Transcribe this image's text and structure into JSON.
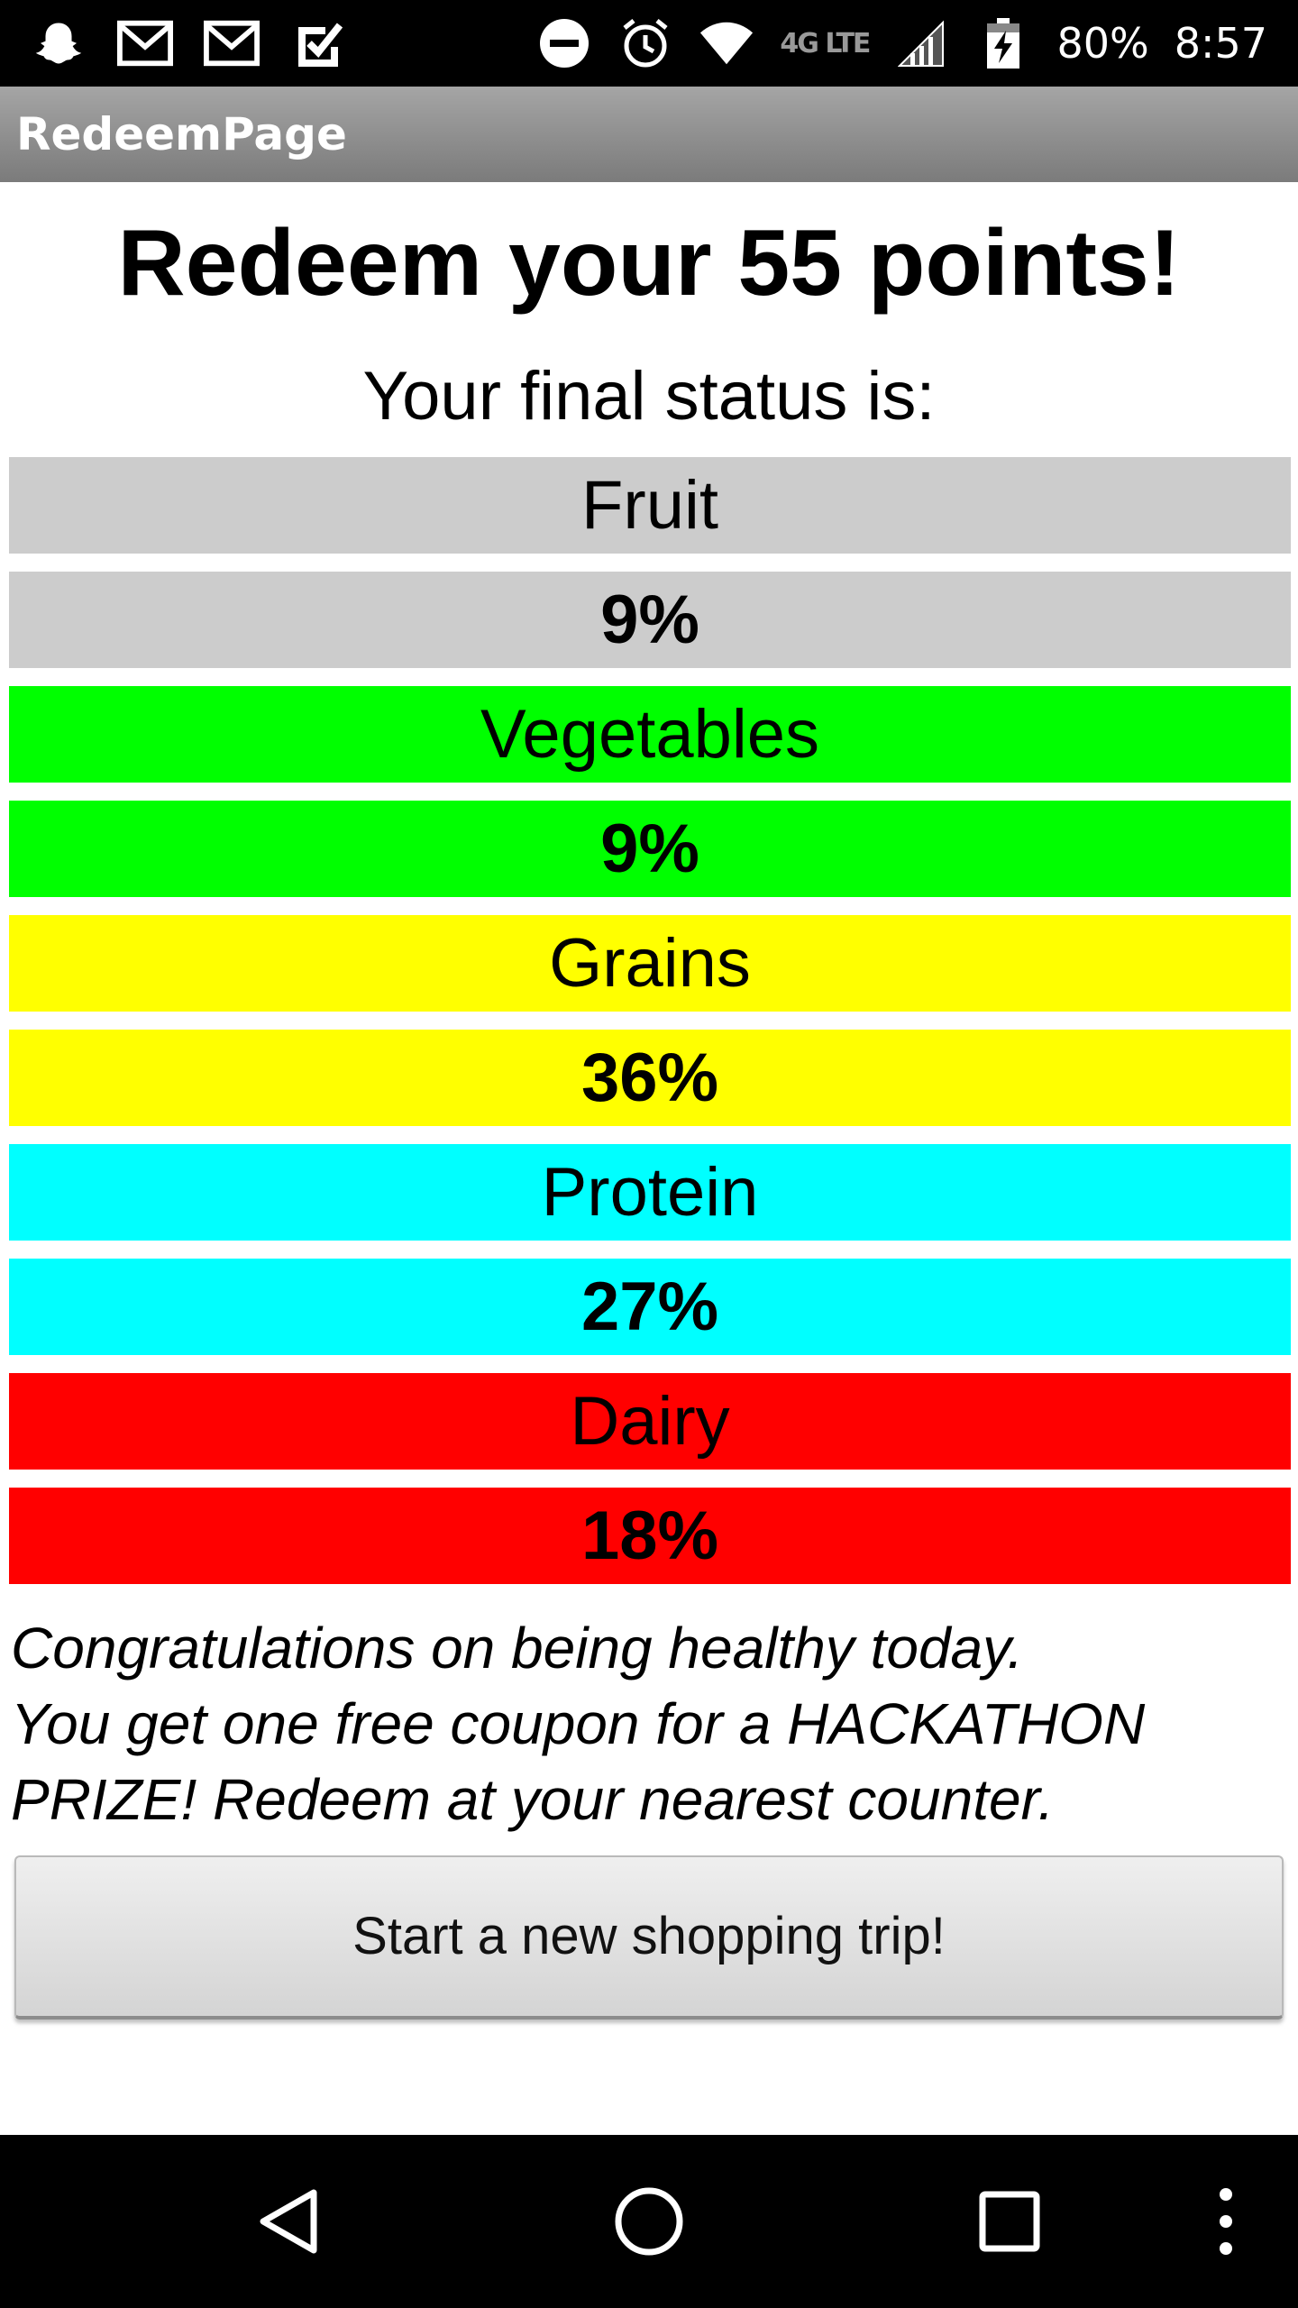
{
  "status_bar": {
    "left_icons": [
      "snapchat-ghost-icon",
      "gmail-icon",
      "gmail-icon",
      "task-check-icon"
    ],
    "right_icons": [
      "do-not-disturb-icon",
      "alarm-icon",
      "wifi-icon",
      "signal-icon",
      "battery-charging-icon"
    ],
    "network": "4G LTE",
    "battery": "80%",
    "time": "8:57"
  },
  "action_bar": {
    "title": "RedeemPage"
  },
  "content": {
    "heading": "Redeem your 55 points!",
    "subheading": "Your final status is:",
    "categories": [
      {
        "label": "Fruit",
        "percent": "9%",
        "color": "#cccccc"
      },
      {
        "label": "Vegetables",
        "percent": "9%",
        "color": "#00ff00"
      },
      {
        "label": "Grains",
        "percent": "36%",
        "color": "#ffff00"
      },
      {
        "label": "Protein",
        "percent": "27%",
        "color": "#00ffff"
      },
      {
        "label": "Dairy",
        "percent": "18%",
        "color": "#ff0000"
      }
    ],
    "message_lines": [
      "Congratulations on being healthy today.",
      "You get one free coupon for a HACKATHON",
      "PRIZE! Redeem at your nearest counter."
    ],
    "button_label": "Start a new shopping trip!"
  },
  "nav_bar": {
    "icons": [
      "back-icon",
      "home-icon",
      "recents-icon",
      "overflow-menu-icon"
    ]
  }
}
